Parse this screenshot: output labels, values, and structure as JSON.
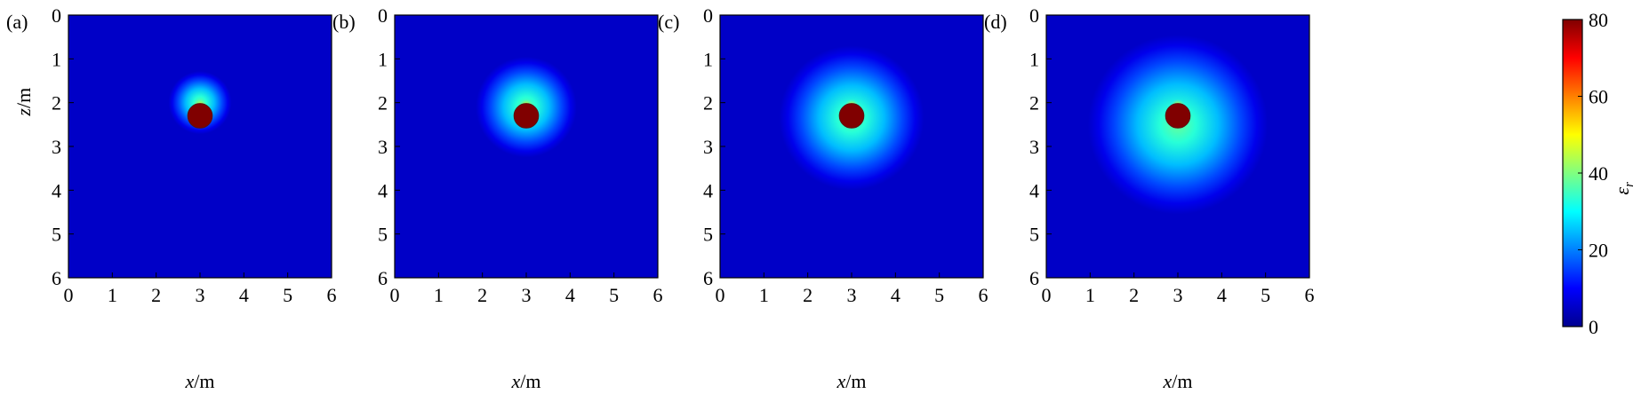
{
  "chart_data": [
    {
      "type": "heatmap",
      "panel_label": "(a)",
      "xlabel": "x/m",
      "ylabel": "z/m",
      "xlim": [
        0,
        6
      ],
      "ylim": [
        0,
        6
      ],
      "x_ticks": [
        "0",
        "1",
        "2",
        "3",
        "4",
        "5",
        "6"
      ],
      "y_ticks": [
        "0",
        "1",
        "2",
        "3",
        "4",
        "5",
        "6"
      ],
      "y_axis_inverted": true,
      "background_value": 5,
      "anomaly": {
        "center_x": 3.0,
        "center_z": 2.3,
        "radius": 0.28,
        "value": 80
      },
      "halo": {
        "center_x": 3.0,
        "center_z": 2.0,
        "radius": 0.72,
        "peak_value": 38
      }
    },
    {
      "type": "heatmap",
      "panel_label": "(b)",
      "xlabel": "x/m",
      "ylabel": "",
      "xlim": [
        0,
        6
      ],
      "ylim": [
        0,
        6
      ],
      "x_ticks": [
        "0",
        "1",
        "2",
        "3",
        "4",
        "5",
        "6"
      ],
      "y_ticks": [
        "0",
        "1",
        "2",
        "3",
        "4",
        "5",
        "6"
      ],
      "y_axis_inverted": true,
      "background_value": 5,
      "anomaly": {
        "center_x": 3.0,
        "center_z": 2.3,
        "radius": 0.28,
        "value": 80
      },
      "halo": {
        "center_x": 3.0,
        "center_z": 2.1,
        "radius": 1.15,
        "peak_value": 38
      }
    },
    {
      "type": "heatmap",
      "panel_label": "(c)",
      "xlabel": "x/m",
      "ylabel": "",
      "xlim": [
        0,
        6
      ],
      "ylim": [
        0,
        6
      ],
      "x_ticks": [
        "0",
        "1",
        "2",
        "3",
        "4",
        "5",
        "6"
      ],
      "y_ticks": [
        "0",
        "1",
        "2",
        "3",
        "4",
        "5",
        "6"
      ],
      "y_axis_inverted": true,
      "background_value": 5,
      "anomaly": {
        "center_x": 3.0,
        "center_z": 2.3,
        "radius": 0.28,
        "value": 80
      },
      "halo": {
        "center_x": 3.0,
        "center_z": 2.35,
        "radius": 1.65,
        "peak_value": 38
      }
    },
    {
      "type": "heatmap",
      "panel_label": "(d)",
      "xlabel": "x/m",
      "ylabel": "",
      "xlim": [
        0,
        6
      ],
      "ylim": [
        0,
        6
      ],
      "x_ticks": [
        "0",
        "1",
        "2",
        "3",
        "4",
        "5",
        "6"
      ],
      "y_ticks": [
        "0",
        "1",
        "2",
        "3",
        "4",
        "5",
        "6"
      ],
      "y_axis_inverted": true,
      "background_value": 5,
      "anomaly": {
        "center_x": 3.0,
        "center_z": 2.3,
        "radius": 0.28,
        "value": 80
      },
      "halo": {
        "center_x": 3.0,
        "center_z": 2.5,
        "radius": 2.05,
        "peak_value": 38
      }
    }
  ],
  "colorbar": {
    "label": "εr",
    "range": [
      0,
      80
    ],
    "ticks": [
      "0",
      "20",
      "40",
      "60",
      "80"
    ],
    "colormap": "jet",
    "colors": [
      "#00008f",
      "#0000ff",
      "#0080ff",
      "#00ffff",
      "#80ff80",
      "#ffff00",
      "#ff8000",
      "#ff0000",
      "#800000"
    ]
  }
}
